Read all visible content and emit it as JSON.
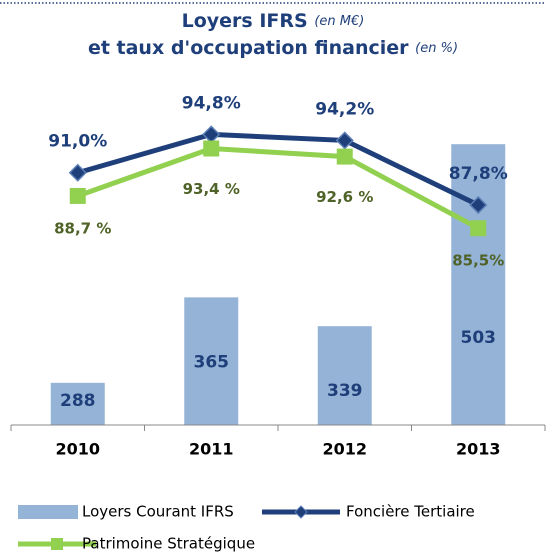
{
  "chart_data": {
    "type": "bar_line",
    "title": [
      "Loyers IFRS",
      "et taux d'occupation financier"
    ],
    "title_units": [
      "(en M€)",
      "(en %)"
    ],
    "categories": [
      "2010",
      "2011",
      "2012",
      "2013"
    ],
    "ylim": [
      250,
      550
    ],
    "y2lim": [
      66,
      99
    ],
    "series": [
      {
        "name": "Loyers Courant IFRS",
        "type": "bar",
        "color": "#95b3d7",
        "values": [
          288,
          365,
          339,
          503
        ]
      },
      {
        "name": "Foncière Tertiaire",
        "type": "line",
        "axis": "y2",
        "color": "#1f3f7a",
        "marker": "diamond",
        "values": [
          91.0,
          94.8,
          94.2,
          87.8
        ],
        "value_labels": [
          "91,0%",
          "94,8%",
          "94,2%",
          "87,8%"
        ]
      },
      {
        "name": "Patrimoine Stratégique",
        "type": "line",
        "axis": "y2",
        "color": "#92d050",
        "marker": "square",
        "values": [
          88.7,
          93.4,
          92.6,
          85.5
        ],
        "value_labels": [
          "88,7 %",
          "93,4 %",
          "92,6 %",
          "85,5%"
        ]
      }
    ]
  }
}
